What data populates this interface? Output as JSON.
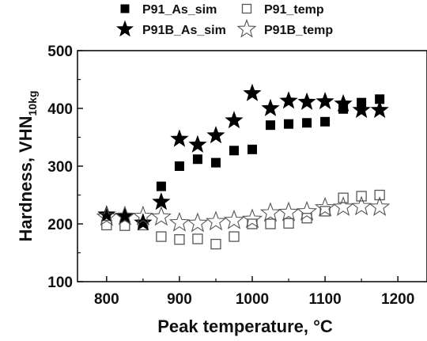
{
  "chart_data": {
    "type": "scatter",
    "xlabel": "Peak temperature, °C",
    "ylabel": {
      "main": "Hardness, VHN",
      "sub": "10kg"
    },
    "xlim": [
      760,
      1240
    ],
    "ylim": [
      100,
      500
    ],
    "xticks": [
      800,
      900,
      1000,
      1100,
      1200
    ],
    "yticks": [
      100,
      200,
      300,
      400,
      500
    ],
    "grid": false,
    "legend_position": "top",
    "series": [
      {
        "name": "P91_As_sim",
        "marker": "filled-square",
        "color": "#000000",
        "points": [
          {
            "x": 875,
            "y": 265
          },
          {
            "x": 900,
            "y": 300
          },
          {
            "x": 925,
            "y": 312
          },
          {
            "x": 950,
            "y": 306
          },
          {
            "x": 975,
            "y": 327
          },
          {
            "x": 1000,
            "y": 329
          },
          {
            "x": 1025,
            "y": 371
          },
          {
            "x": 1050,
            "y": 373
          },
          {
            "x": 1075,
            "y": 375
          },
          {
            "x": 1100,
            "y": 377
          },
          {
            "x": 1125,
            "y": 399
          },
          {
            "x": 1150,
            "y": 410
          },
          {
            "x": 1175,
            "y": 416
          }
        ]
      },
      {
        "name": "P91_temp",
        "marker": "open-square",
        "color": "#555555",
        "points": [
          {
            "x": 800,
            "y": 198
          },
          {
            "x": 825,
            "y": 197
          },
          {
            "x": 850,
            "y": 198
          },
          {
            "x": 875,
            "y": 178
          },
          {
            "x": 900,
            "y": 173
          },
          {
            "x": 925,
            "y": 174
          },
          {
            "x": 950,
            "y": 165
          },
          {
            "x": 975,
            "y": 178
          },
          {
            "x": 1000,
            "y": 200
          },
          {
            "x": 1025,
            "y": 200
          },
          {
            "x": 1050,
            "y": 201
          },
          {
            "x": 1075,
            "y": 210
          },
          {
            "x": 1100,
            "y": 222
          },
          {
            "x": 1125,
            "y": 245
          },
          {
            "x": 1150,
            "y": 248
          },
          {
            "x": 1175,
            "y": 250
          }
        ]
      },
      {
        "name": "P91B_As_sim",
        "marker": "filled-star",
        "color": "#000000",
        "points": [
          {
            "x": 800,
            "y": 216
          },
          {
            "x": 825,
            "y": 214
          },
          {
            "x": 850,
            "y": 202
          },
          {
            "x": 875,
            "y": 238
          },
          {
            "x": 900,
            "y": 347
          },
          {
            "x": 925,
            "y": 337
          },
          {
            "x": 950,
            "y": 353
          },
          {
            "x": 975,
            "y": 379
          },
          {
            "x": 1000,
            "y": 426
          },
          {
            "x": 1025,
            "y": 400
          },
          {
            "x": 1050,
            "y": 413
          },
          {
            "x": 1075,
            "y": 411
          },
          {
            "x": 1100,
            "y": 412
          },
          {
            "x": 1125,
            "y": 408
          },
          {
            "x": 1150,
            "y": 397
          },
          {
            "x": 1175,
            "y": 397
          }
        ]
      },
      {
        "name": "P91B_temp",
        "marker": "open-star",
        "color": "#555555",
        "points": [
          {
            "x": 800,
            "y": 212
          },
          {
            "x": 825,
            "y": 213
          },
          {
            "x": 850,
            "y": 213
          },
          {
            "x": 875,
            "y": 212
          },
          {
            "x": 900,
            "y": 202
          },
          {
            "x": 925,
            "y": 201
          },
          {
            "x": 950,
            "y": 204
          },
          {
            "x": 975,
            "y": 206
          },
          {
            "x": 1000,
            "y": 208
          },
          {
            "x": 1025,
            "y": 219
          },
          {
            "x": 1050,
            "y": 220
          },
          {
            "x": 1075,
            "y": 221
          },
          {
            "x": 1100,
            "y": 228
          },
          {
            "x": 1125,
            "y": 229
          },
          {
            "x": 1150,
            "y": 230
          },
          {
            "x": 1175,
            "y": 229
          }
        ]
      }
    ]
  }
}
